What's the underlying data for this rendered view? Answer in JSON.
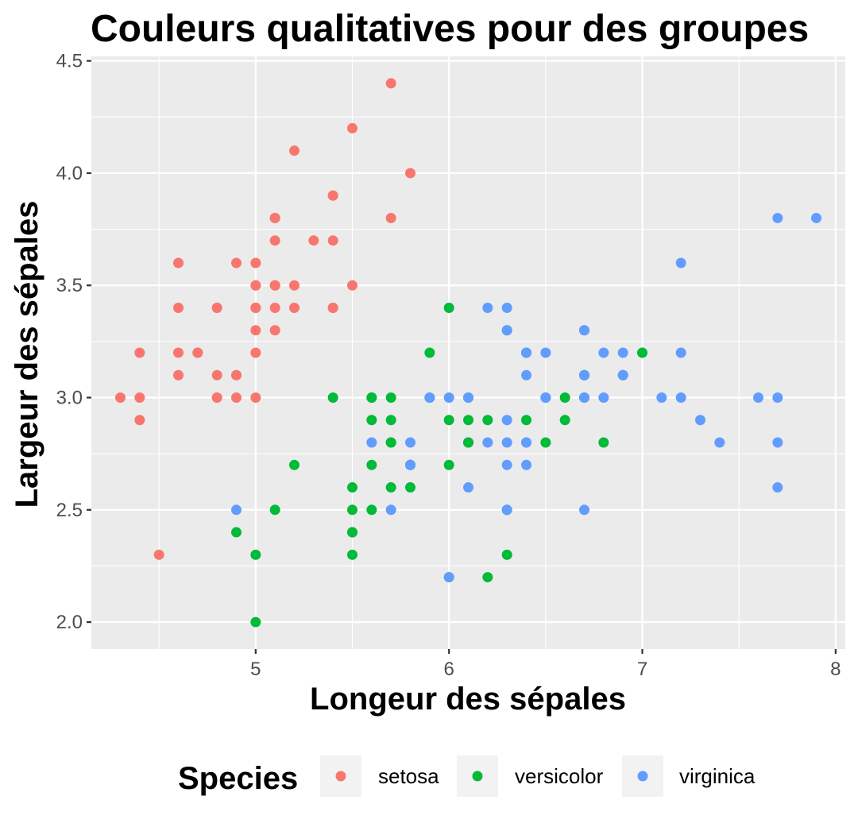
{
  "chart_data": {
    "type": "scatter",
    "title": "Couleurs qualitatives pour des groupes",
    "xlabel": "Longeur des sépales",
    "ylabel": "Largeur des sépales",
    "xlim": [
      4.15,
      8.05
    ],
    "ylim": [
      1.88,
      4.52
    ],
    "x_ticks": [
      5,
      6,
      7,
      8
    ],
    "x_tick_labels": [
      "5",
      "6",
      "7",
      "8"
    ],
    "y_ticks": [
      2.0,
      2.5,
      3.0,
      3.5,
      4.0,
      4.5
    ],
    "y_tick_labels": [
      "2.0",
      "2.5",
      "3.0",
      "3.5",
      "4.0",
      "4.5"
    ],
    "grid": true,
    "legend": {
      "title": "Species",
      "position": "bottom"
    },
    "series": [
      {
        "name": "setosa",
        "color": "#F8766D",
        "points": [
          [
            5.1,
            3.5
          ],
          [
            4.9,
            3.0
          ],
          [
            4.7,
            3.2
          ],
          [
            4.6,
            3.1
          ],
          [
            5.0,
            3.6
          ],
          [
            5.4,
            3.9
          ],
          [
            4.6,
            3.4
          ],
          [
            5.0,
            3.4
          ],
          [
            4.4,
            2.9
          ],
          [
            4.9,
            3.1
          ],
          [
            5.4,
            3.7
          ],
          [
            4.8,
            3.4
          ],
          [
            4.8,
            3.0
          ],
          [
            4.3,
            3.0
          ],
          [
            5.8,
            4.0
          ],
          [
            5.7,
            4.4
          ],
          [
            5.4,
            3.9
          ],
          [
            5.1,
            3.5
          ],
          [
            5.7,
            3.8
          ],
          [
            5.1,
            3.8
          ],
          [
            5.4,
            3.4
          ],
          [
            5.1,
            3.7
          ],
          [
            4.6,
            3.6
          ],
          [
            5.1,
            3.3
          ],
          [
            4.8,
            3.4
          ],
          [
            5.0,
            3.0
          ],
          [
            5.0,
            3.4
          ],
          [
            5.2,
            3.5
          ],
          [
            5.2,
            3.4
          ],
          [
            4.7,
            3.2
          ],
          [
            4.8,
            3.1
          ],
          [
            5.4,
            3.4
          ],
          [
            5.2,
            4.1
          ],
          [
            5.5,
            4.2
          ],
          [
            4.9,
            3.1
          ],
          [
            5.0,
            3.2
          ],
          [
            5.5,
            3.5
          ],
          [
            4.9,
            3.6
          ],
          [
            4.4,
            3.0
          ],
          [
            5.1,
            3.4
          ],
          [
            5.0,
            3.5
          ],
          [
            4.5,
            2.3
          ],
          [
            4.4,
            3.2
          ],
          [
            5.0,
            3.5
          ],
          [
            5.1,
            3.8
          ],
          [
            4.8,
            3.0
          ],
          [
            5.1,
            3.8
          ],
          [
            4.6,
            3.2
          ],
          [
            5.3,
            3.7
          ],
          [
            5.0,
            3.3
          ]
        ]
      },
      {
        "name": "versicolor",
        "color": "#00BA38",
        "points": [
          [
            7.0,
            3.2
          ],
          [
            6.4,
            3.2
          ],
          [
            6.9,
            3.1
          ],
          [
            5.5,
            2.3
          ],
          [
            6.5,
            2.8
          ],
          [
            5.7,
            2.8
          ],
          [
            6.3,
            3.3
          ],
          [
            4.9,
            2.4
          ],
          [
            6.6,
            2.9
          ],
          [
            5.2,
            2.7
          ],
          [
            5.0,
            2.0
          ],
          [
            5.9,
            3.0
          ],
          [
            6.0,
            2.2
          ],
          [
            6.1,
            2.9
          ],
          [
            5.6,
            2.9
          ],
          [
            6.7,
            3.1
          ],
          [
            5.6,
            3.0
          ],
          [
            5.8,
            2.7
          ],
          [
            6.2,
            2.2
          ],
          [
            5.6,
            2.5
          ],
          [
            5.9,
            3.2
          ],
          [
            6.1,
            2.8
          ],
          [
            6.3,
            2.5
          ],
          [
            6.1,
            2.8
          ],
          [
            6.4,
            2.9
          ],
          [
            6.6,
            3.0
          ],
          [
            6.8,
            2.8
          ],
          [
            6.7,
            3.0
          ],
          [
            6.0,
            2.9
          ],
          [
            5.7,
            2.6
          ],
          [
            5.5,
            2.4
          ],
          [
            5.5,
            2.4
          ],
          [
            5.8,
            2.7
          ],
          [
            6.0,
            2.7
          ],
          [
            5.4,
            3.0
          ],
          [
            6.0,
            3.4
          ],
          [
            6.7,
            3.1
          ],
          [
            6.3,
            2.3
          ],
          [
            5.6,
            3.0
          ],
          [
            5.5,
            2.5
          ],
          [
            5.5,
            2.6
          ],
          [
            6.1,
            3.0
          ],
          [
            5.8,
            2.6
          ],
          [
            5.0,
            2.3
          ],
          [
            5.6,
            2.7
          ],
          [
            5.7,
            3.0
          ],
          [
            5.7,
            2.9
          ],
          [
            6.2,
            2.9
          ],
          [
            5.1,
            2.5
          ],
          [
            5.7,
            2.8
          ]
        ]
      },
      {
        "name": "virginica",
        "color": "#619CFF",
        "points": [
          [
            6.3,
            3.3
          ],
          [
            5.8,
            2.7
          ],
          [
            7.1,
            3.0
          ],
          [
            6.3,
            2.9
          ],
          [
            6.5,
            3.0
          ],
          [
            7.6,
            3.0
          ],
          [
            4.9,
            2.5
          ],
          [
            7.3,
            2.9
          ],
          [
            6.7,
            2.5
          ],
          [
            7.2,
            3.6
          ],
          [
            6.5,
            3.2
          ],
          [
            6.4,
            2.7
          ],
          [
            6.8,
            3.0
          ],
          [
            5.7,
            2.5
          ],
          [
            5.8,
            2.8
          ],
          [
            6.4,
            3.2
          ],
          [
            6.5,
            3.0
          ],
          [
            7.7,
            3.8
          ],
          [
            7.7,
            2.6
          ],
          [
            6.0,
            2.2
          ],
          [
            6.9,
            3.2
          ],
          [
            5.6,
            2.8
          ],
          [
            7.7,
            2.8
          ],
          [
            6.3,
            2.7
          ],
          [
            6.7,
            3.3
          ],
          [
            7.2,
            3.2
          ],
          [
            6.2,
            2.8
          ],
          [
            6.1,
            3.0
          ],
          [
            6.4,
            2.8
          ],
          [
            7.2,
            3.0
          ],
          [
            7.4,
            2.8
          ],
          [
            7.9,
            3.8
          ],
          [
            6.4,
            2.8
          ],
          [
            6.3,
            2.8
          ],
          [
            6.1,
            2.6
          ],
          [
            7.7,
            3.0
          ],
          [
            6.3,
            3.4
          ],
          [
            6.4,
            3.1
          ],
          [
            6.0,
            3.0
          ],
          [
            6.9,
            3.1
          ],
          [
            6.7,
            3.1
          ],
          [
            6.9,
            3.1
          ],
          [
            5.8,
            2.7
          ],
          [
            6.8,
            3.2
          ],
          [
            6.7,
            3.3
          ],
          [
            6.7,
            3.0
          ],
          [
            6.3,
            2.5
          ],
          [
            6.5,
            3.0
          ],
          [
            6.2,
            3.4
          ],
          [
            5.9,
            3.0
          ]
        ]
      }
    ]
  }
}
